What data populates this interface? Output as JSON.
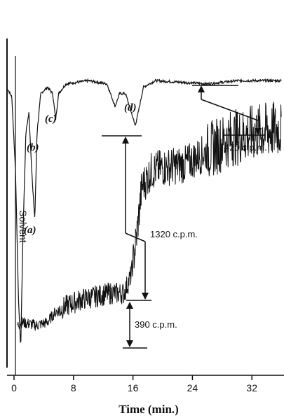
{
  "chart_data": {
    "type": "line",
    "xlabel": "Time (min.)",
    "xlim": [
      -1,
      36
    ],
    "xticks": [
      0,
      8,
      16,
      24,
      32
    ],
    "xtick_labels": [
      "0",
      "8",
      "16",
      "24",
      "32"
    ],
    "series": [
      {
        "kind": "detector-trace",
        "baseline_level": 0.88,
        "points": [
          [
            -1,
            0.86
          ],
          [
            -0.3,
            0.83
          ],
          [
            0.2,
            0.6
          ],
          [
            0.6,
            0.2
          ],
          [
            0.9,
            0.05
          ],
          [
            1.2,
            0.4
          ],
          [
            1.6,
            0.72
          ],
          [
            2.0,
            0.78
          ],
          [
            2.5,
            0.55
          ],
          [
            2.8,
            0.45
          ],
          [
            3.1,
            0.72
          ],
          [
            3.6,
            0.84
          ],
          [
            4.5,
            0.86
          ],
          [
            5.2,
            0.84
          ],
          [
            5.6,
            0.76
          ],
          [
            6.0,
            0.84
          ],
          [
            7,
            0.87
          ],
          [
            10,
            0.88
          ],
          [
            12.5,
            0.87
          ],
          [
            13.6,
            0.8
          ],
          [
            14.2,
            0.84
          ],
          [
            15.0,
            0.84
          ],
          [
            15.8,
            0.78
          ],
          [
            16.3,
            0.74
          ],
          [
            16.7,
            0.78
          ],
          [
            17.4,
            0.86
          ],
          [
            19,
            0.88
          ],
          [
            26,
            0.87
          ],
          [
            30,
            0.88
          ],
          [
            36,
            0.88
          ]
        ]
      },
      {
        "kind": "radioactivity-trace",
        "points": [
          [
            0.5,
            0.12
          ],
          [
            1,
            0.13
          ],
          [
            3,
            0.12
          ],
          [
            4.5,
            0.13
          ],
          [
            5.5,
            0.16
          ],
          [
            7,
            0.18
          ],
          [
            9,
            0.2
          ],
          [
            11,
            0.21
          ],
          [
            13,
            0.22
          ],
          [
            14.8,
            0.22
          ],
          [
            15.8,
            0.28
          ],
          [
            16.5,
            0.4
          ],
          [
            17.2,
            0.55
          ],
          [
            18.5,
            0.6
          ],
          [
            20,
            0.61
          ],
          [
            23,
            0.62
          ],
          [
            26,
            0.66
          ],
          [
            29,
            0.7
          ],
          [
            33,
            0.72
          ],
          [
            36,
            0.73
          ]
        ]
      }
    ],
    "peaks": [
      {
        "label": "(a)",
        "x": 0.8
      },
      {
        "label": "(b)",
        "x": 2.8
      },
      {
        "label": "(c)",
        "x": 5.6
      },
      {
        "label": "(d)",
        "x": 16.3
      }
    ],
    "annotations": {
      "solvent": "Solvent",
      "cpm_1320": "1320 c.p.m.",
      "cpm_390": "390 c.p.m.",
      "cpm_420": "420 c.p.m."
    }
  }
}
